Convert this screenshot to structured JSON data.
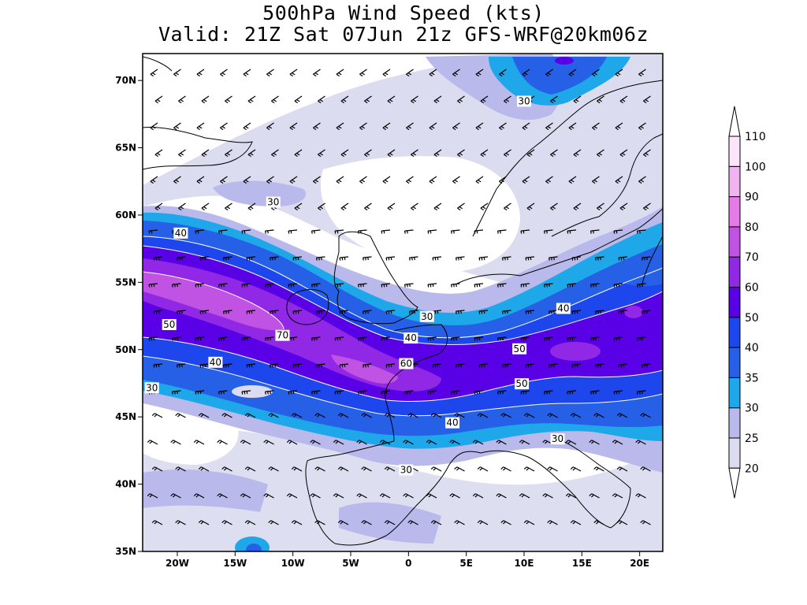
{
  "title": {
    "line1": "500hPa Wind Speed (kts)",
    "line2": "Valid: 21Z Sat 07Jun 21z GFS-WRF@20km06z"
  },
  "map": {
    "lon_range": [
      -23,
      22
    ],
    "lat_range": [
      35,
      72
    ],
    "lon_ticks": [
      {
        "value": -20,
        "label": "20W"
      },
      {
        "value": -15,
        "label": "15W"
      },
      {
        "value": -10,
        "label": "10W"
      },
      {
        "value": -5,
        "label": "5W"
      },
      {
        "value": 0,
        "label": "0"
      },
      {
        "value": 5,
        "label": "5E"
      },
      {
        "value": 10,
        "label": "10E"
      },
      {
        "value": 15,
        "label": "15E"
      },
      {
        "value": 20,
        "label": "20E"
      }
    ],
    "lat_ticks": [
      {
        "value": 70,
        "label": "70N"
      },
      {
        "value": 65,
        "label": "65N"
      },
      {
        "value": 60,
        "label": "60N"
      },
      {
        "value": 55,
        "label": "55N"
      },
      {
        "value": 50,
        "label": "50N"
      },
      {
        "value": 45,
        "label": "45N"
      },
      {
        "value": 40,
        "label": "40N"
      },
      {
        "value": 35,
        "label": "35N"
      }
    ]
  },
  "contour_labels": [
    {
      "text": "30",
      "lon": 10,
      "lat": 68.4
    },
    {
      "text": "30",
      "lon": -11.7,
      "lat": 60.9
    },
    {
      "text": "40",
      "lon": -19.7,
      "lat": 58.6
    },
    {
      "text": "50",
      "lon": -20.7,
      "lat": 51.8
    },
    {
      "text": "70",
      "lon": -10.9,
      "lat": 51.0
    },
    {
      "text": "40",
      "lon": -16.7,
      "lat": 49.0
    },
    {
      "text": "30",
      "lon": -22.2,
      "lat": 47.1
    },
    {
      "text": "30",
      "lon": 1.6,
      "lat": 52.4
    },
    {
      "text": "40",
      "lon": 0.2,
      "lat": 50.8
    },
    {
      "text": "60",
      "lon": -0.2,
      "lat": 48.9
    },
    {
      "text": "40",
      "lon": 13.4,
      "lat": 53.0
    },
    {
      "text": "50",
      "lon": 9.6,
      "lat": 50.0
    },
    {
      "text": "50",
      "lon": 9.8,
      "lat": 47.4
    },
    {
      "text": "40",
      "lon": 3.8,
      "lat": 44.5
    },
    {
      "text": "30",
      "lon": 12.9,
      "lat": 43.3
    },
    {
      "text": "30",
      "lon": -0.2,
      "lat": 41.0
    }
  ],
  "colorbar": {
    "levels": [
      "20",
      "25",
      "30",
      "35",
      "40",
      "50",
      "60",
      "70",
      "80",
      "90",
      "100",
      "110"
    ],
    "colors": [
      "#ffffff",
      "#dcdcf0",
      "#b9b9ec",
      "#1ea8ea",
      "#2660e6",
      "#1d47ec",
      "#5a00e6",
      "#9128e6",
      "#c052e4",
      "#e67be8",
      "#f0b4f0",
      "#fce4fc",
      "#ffffff"
    ]
  }
}
